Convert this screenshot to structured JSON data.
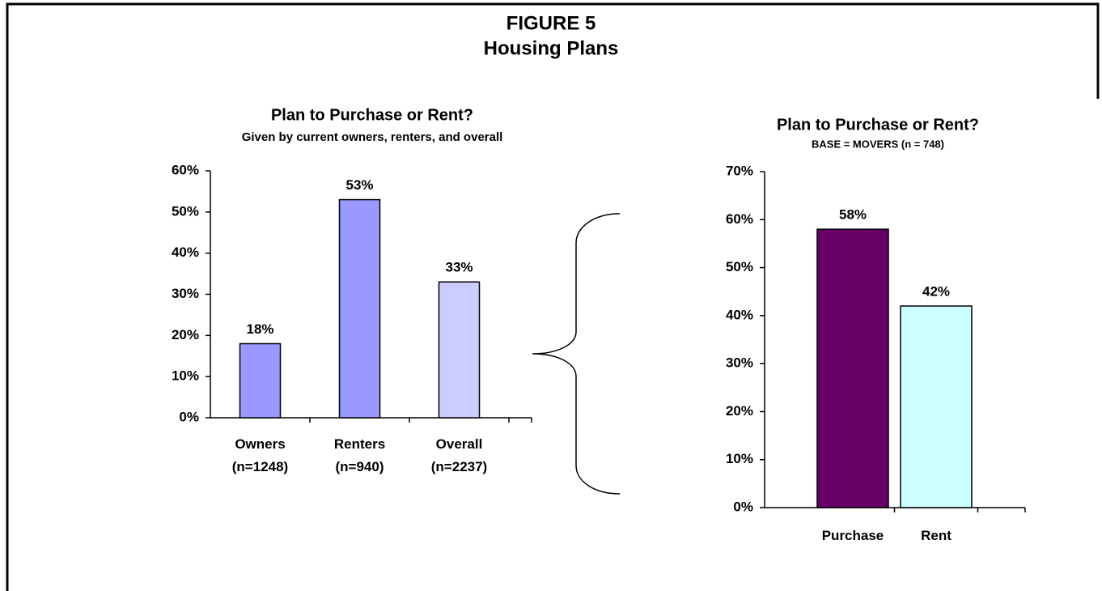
{
  "figure": {
    "label": "FIGURE 5",
    "title": "Housing Plans"
  },
  "chart_data": [
    {
      "type": "bar",
      "title": "Plan to Purchase or Rent?",
      "subtitle": "Given by current owners, renters, and overall",
      "categories": [
        "Owners\n(n=1248)",
        "Renters\n(n=940)",
        "Overall\n(n=2237)"
      ],
      "values": [
        18,
        53,
        33
      ],
      "value_labels": [
        "18%",
        "53%",
        "33%"
      ],
      "colors": [
        "#9999ff",
        "#9999ff",
        "#ccccff"
      ],
      "ylim": [
        0,
        60
      ],
      "yticks": [
        {
          "value": 0,
          "label": "0%"
        },
        {
          "value": 10,
          "label": "10%"
        },
        {
          "value": 20,
          "label": "20%"
        },
        {
          "value": 30,
          "label": "30%"
        },
        {
          "value": 40,
          "label": "40%"
        },
        {
          "value": 50,
          "label": "50%"
        },
        {
          "value": 60,
          "label": "60%"
        }
      ]
    },
    {
      "type": "bar",
      "title": "Plan to Purchase or Rent?",
      "subtitle": "BASE = MOVERS (n = 748)",
      "categories": [
        "Purchase",
        "Rent"
      ],
      "values": [
        58,
        42
      ],
      "value_labels": [
        "58%",
        "42%"
      ],
      "colors": [
        "#660066",
        "#ccffff"
      ],
      "ylim": [
        0,
        70
      ],
      "yticks": [
        {
          "value": 0,
          "label": "0%"
        },
        {
          "value": 10,
          "label": "10%"
        },
        {
          "value": 20,
          "label": "20%"
        },
        {
          "value": 30,
          "label": "30%"
        },
        {
          "value": 40,
          "label": "40%"
        },
        {
          "value": 50,
          "label": "50%"
        },
        {
          "value": 60,
          "label": "60%"
        },
        {
          "value": 70,
          "label": "70%"
        }
      ]
    }
  ]
}
